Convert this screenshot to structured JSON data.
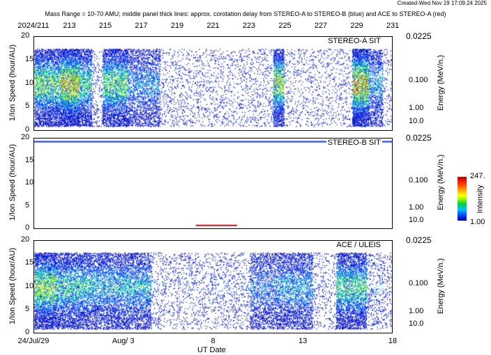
{
  "header": {
    "created": "Created-Wed Nov 19 17:09:24 2025",
    "subtitle": "Mass Range = 10-70 AMU;  middle panel thick lines: approx. corotation delay from STEREO-A to STEREO-B (blue) and ACE to STEREO-A (red)"
  },
  "colors": {
    "corotation_blue": "#1030e0",
    "corotation_red": "#c01010"
  },
  "chart_data": {
    "type": "heatmap",
    "xlabel": "UT Date",
    "x_range_doy": [
      211,
      231
    ],
    "top_ticks": [
      "2024/211",
      "213",
      "215",
      "217",
      "219",
      "221",
      "223",
      "225",
      "227",
      "229",
      "231"
    ],
    "bottom_ticks": [
      "24/Jul/29",
      "Aug/ 3",
      "8",
      "13",
      "18"
    ],
    "panels": [
      {
        "name": "STEREO-A SIT",
        "ylabel": "1/Ion Speed (hour/AU)",
        "yticks": [
          "0",
          "5",
          "10",
          "15",
          "20"
        ],
        "ylim": [
          0,
          20
        ],
        "energy_label": "Energy (MeV/n.)",
        "energy_ticks": [
          "0.0225",
          "0.100",
          "1.00",
          "10.0"
        ],
        "bands": [
          [
            211,
            212.5,
            0.6
          ],
          [
            212.5,
            213.5,
            0.9
          ],
          [
            213.5,
            214.2,
            0.5
          ],
          [
            214.8,
            216.2,
            0.6
          ],
          [
            216.2,
            218,
            0.25
          ],
          [
            218,
            224,
            0.06
          ],
          [
            224.3,
            224.9,
            0.7
          ],
          [
            228.7,
            229.6,
            0.95
          ],
          [
            229.6,
            230.4,
            0.3
          ]
        ]
      },
      {
        "name": "STEREO-B SIT",
        "ylabel": "1/Ion Speed (hour/AU)",
        "yticks": [
          "0",
          "5",
          "10",
          "15",
          "20"
        ],
        "ylim": [
          0,
          20
        ],
        "energy_label": "Energy (MeV/n.)",
        "energy_ticks": [
          "0.0225",
          "0.100",
          "1.00",
          "10.0"
        ],
        "bands": [],
        "corotation_lines": [
          {
            "color": "blue",
            "y": 19.3,
            "x": [
              211,
              231
            ]
          },
          {
            "color": "red",
            "y": 0.8,
            "x": [
              220,
              222.3
            ]
          }
        ]
      },
      {
        "name": "ACE / ULEIS",
        "ylabel": "1/Ion Speed (hour/AU)",
        "yticks": [
          "0",
          "5",
          "10",
          "15",
          "20"
        ],
        "ylim": [
          0,
          20
        ],
        "energy_label": "Energy (MeV/n.)",
        "energy_ticks": [
          "0.0225",
          "0.100",
          "1.00",
          "10.0"
        ],
        "bands": [
          [
            211,
            212.2,
            0.7
          ],
          [
            212.2,
            214,
            0.45
          ],
          [
            214,
            217.5,
            0.35
          ],
          [
            217.5,
            223,
            0.08
          ],
          [
            223,
            224.5,
            0.2
          ],
          [
            224.5,
            226.5,
            0.3
          ],
          [
            226.5,
            227.5,
            0.06
          ],
          [
            227.8,
            229.5,
            0.5
          ],
          [
            229.5,
            230.5,
            0.15
          ]
        ]
      }
    ],
    "colorbar": {
      "label": "Intensity",
      "max": "247.",
      "min": "1.00"
    }
  }
}
